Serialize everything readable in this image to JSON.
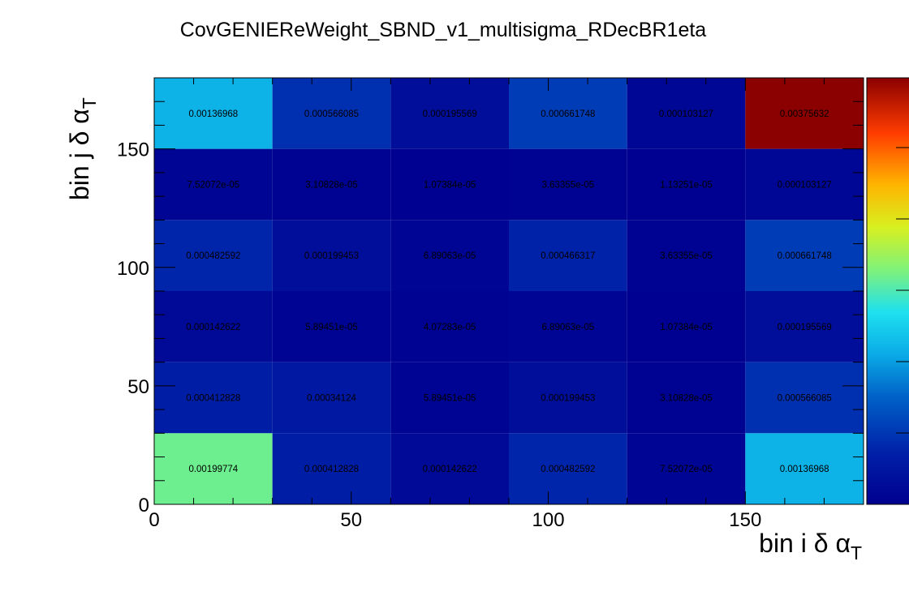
{
  "chart_data": {
    "type": "heatmap",
    "title": "CovGENIEReWeight_SBND_v1_multisigma_RDecBR1eta",
    "xlabel": {
      "main": "bin i δ α",
      "sub": "T"
    },
    "ylabel": {
      "main": "bin j δ α",
      "sub": "T"
    },
    "xlim": [
      0,
      180
    ],
    "ylim": [
      0,
      180
    ],
    "x_edges": [
      0,
      30,
      60,
      90,
      120,
      150,
      180
    ],
    "y_edges": [
      0,
      30,
      60,
      90,
      120,
      150,
      180
    ],
    "x_ticks": [
      "0",
      "50",
      "100",
      "150"
    ],
    "x_tick_values": [
      0,
      50,
      100,
      150
    ],
    "y_ticks": [
      "0",
      "50",
      "100",
      "150"
    ],
    "y_tick_values": [
      0,
      50,
      100,
      150
    ],
    "z_range": [
      0,
      0.00375632
    ],
    "colorscale": "rainbow",
    "rows_top_to_bottom": [
      [
        "0.00136968",
        "0.000566085",
        "0.000195569",
        "0.000661748",
        "0.000103127",
        "0.00375632"
      ],
      [
        "7.52072e-05",
        "3.10828e-05",
        "1.07384e-05",
        "3.63355e-05",
        "1.13251e-05",
        "0.000103127"
      ],
      [
        "0.000482592",
        "0.000199453",
        "6.89063e-05",
        "0.000466317",
        "3.63355e-05",
        "0.000661748"
      ],
      [
        "0.000142622",
        "5.89451e-05",
        "4.07283e-05",
        "6.89063e-05",
        "1.07384e-05",
        "0.000195569"
      ],
      [
        "0.000412828",
        "0.00034124",
        "5.89451e-05",
        "0.000199453",
        "3.10828e-05",
        "0.000566085"
      ],
      [
        "0.00199774",
        "0.000412828",
        "0.000142622",
        "0.000482592",
        "7.52072e-05",
        "0.00136968"
      ]
    ]
  }
}
